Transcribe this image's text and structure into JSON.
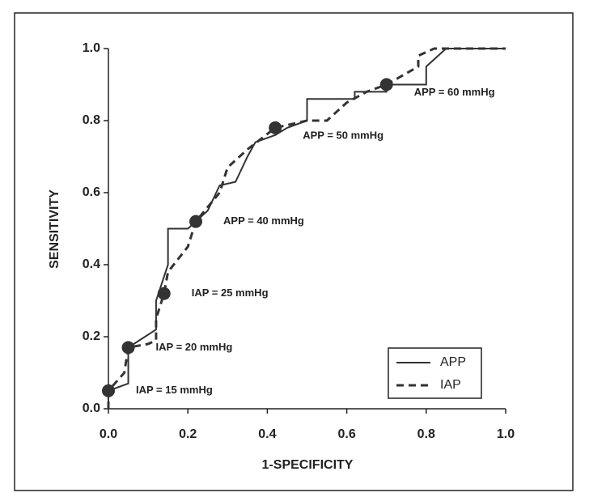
{
  "chart_data": {
    "type": "line",
    "x_label": "1-SPECIFICITY",
    "y_label": "SENSITIVITY",
    "xlim": [
      0,
      1
    ],
    "ylim": [
      0,
      1
    ],
    "xticks": [
      {
        "value": 0,
        "label": "0.0"
      },
      {
        "value": 0.2,
        "label": "0.2"
      },
      {
        "value": 0.4,
        "label": "0.4"
      },
      {
        "value": 0.6,
        "label": "0.6"
      },
      {
        "value": 0.8,
        "label": "0.8"
      },
      {
        "value": 1,
        "label": "1.0"
      }
    ],
    "yticks": [
      {
        "value": 0,
        "label": "0.0"
      },
      {
        "value": 0.2,
        "label": "0.2"
      },
      {
        "value": 0.4,
        "label": "0.4"
      },
      {
        "value": 0.6,
        "label": "0.6"
      },
      {
        "value": 0.8,
        "label": "0.8"
      },
      {
        "value": 1,
        "label": "1.0"
      }
    ],
    "legend": "lower right",
    "series": [
      {
        "name": "APP",
        "color": "#333333",
        "dashed": false,
        "x": [
          0,
          0,
          0.05,
          0.05,
          0.12,
          0.12,
          0.15,
          0.15,
          0.2,
          0.22,
          0.25,
          0.28,
          0.32,
          0.35,
          0.37,
          0.42,
          0.45,
          0.5,
          0.5,
          0.62,
          0.62,
          0.7,
          0.7,
          0.8,
          0.8,
          0.85,
          1
        ],
        "values": [
          0,
          0.05,
          0.07,
          0.17,
          0.22,
          0.3,
          0.4,
          0.5,
          0.5,
          0.52,
          0.55,
          0.62,
          0.63,
          0.7,
          0.74,
          0.76,
          0.78,
          0.8,
          0.86,
          0.86,
          0.88,
          0.88,
          0.9,
          0.9,
          0.95,
          1,
          1
        ]
      },
      {
        "name": "IAP",
        "color": "#333333",
        "dashed": true,
        "x": [
          0,
          0,
          0.04,
          0.05,
          0.1,
          0.12,
          0.12,
          0.14,
          0.15,
          0.2,
          0.22,
          0.28,
          0.3,
          0.35,
          0.42,
          0.5,
          0.55,
          0.6,
          0.65,
          0.7,
          0.78,
          0.78,
          0.82,
          1
        ],
        "values": [
          0,
          0.05,
          0.1,
          0.17,
          0.18,
          0.19,
          0.25,
          0.32,
          0.38,
          0.45,
          0.52,
          0.6,
          0.67,
          0.72,
          0.78,
          0.8,
          0.8,
          0.85,
          0.88,
          0.9,
          0.95,
          0.98,
          1,
          1
        ]
      }
    ],
    "annotations": [
      {
        "text": "IAP = 15 mmHg",
        "x": 0,
        "y": 0.05
      },
      {
        "text": "IAP = 20 mmHg",
        "x": 0.05,
        "y": 0.17
      },
      {
        "text": "IAP = 25 mmHg",
        "x": 0.14,
        "y": 0.32
      },
      {
        "text": "APP = 40 mmHg",
        "x": 0.22,
        "y": 0.52
      },
      {
        "text": "APP = 50 mmHg",
        "x": 0.42,
        "y": 0.78
      },
      {
        "text": "APP = 60 mmHg",
        "x": 0.7,
        "y": 0.9
      }
    ]
  }
}
